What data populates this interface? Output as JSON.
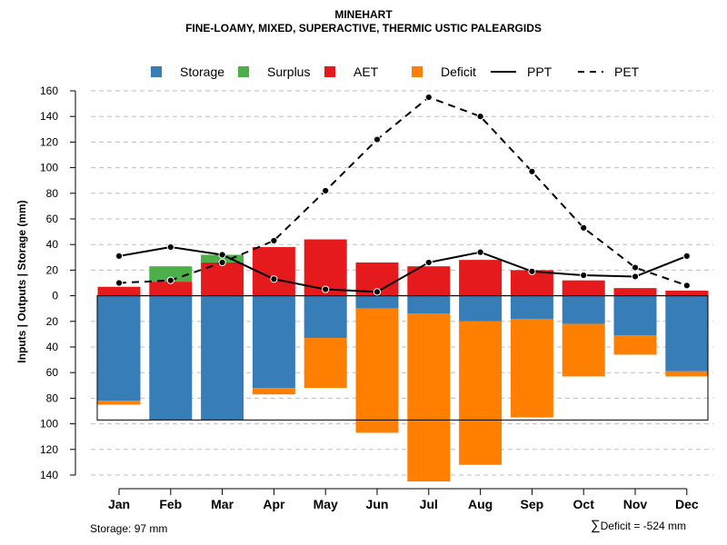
{
  "chart_data": {
    "type": "bar",
    "title": "MINEHART",
    "subtitle": "FINE-LOAMY, MIXED, SUPERACTIVE, THERMIC USTIC PALEARGIDS",
    "ylabel": "Inputs | Outputs | Storage    (mm)",
    "ylim": [
      -140,
      160
    ],
    "yticks": [
      160,
      140,
      120,
      100,
      80,
      60,
      40,
      20,
      0,
      -20,
      -40,
      -60,
      -80,
      -100,
      -120,
      -140
    ],
    "ytick_labels": [
      "160",
      "140",
      "120",
      "100",
      "80",
      "60",
      "40",
      "20",
      "0",
      "20",
      "40",
      "60",
      "80",
      "100",
      "120",
      "140"
    ],
    "categories": [
      "Jan",
      "Feb",
      "Mar",
      "Apr",
      "May",
      "Jun",
      "Jul",
      "Aug",
      "Sep",
      "Oct",
      "Nov",
      "Dec"
    ],
    "legend": [
      "Storage",
      "Surplus",
      "AET",
      "Deficit",
      "PPT",
      "PET"
    ],
    "storage_capacity": 97,
    "series": [
      {
        "name": "Storage",
        "color": "#377EB8",
        "values": [
          -82,
          -97,
          -97,
          -72,
          -33,
          -10,
          -14,
          -20,
          -18,
          -22,
          -31,
          -59
        ]
      },
      {
        "name": "Surplus",
        "color": "#4DAF4A",
        "values": [
          0,
          12,
          6,
          0,
          0,
          0,
          0,
          0,
          0,
          0,
          0,
          0
        ]
      },
      {
        "name": "AET",
        "color": "#E41A1C",
        "values": [
          7,
          11,
          26,
          38,
          44,
          26,
          23,
          28,
          20,
          12,
          6,
          4
        ]
      },
      {
        "name": "Deficit",
        "color": "#FF7F00",
        "values": [
          -3,
          0,
          0,
          -5,
          -39,
          -97,
          -131,
          -112,
          -77,
          -41,
          -15,
          -4
        ]
      },
      {
        "name": "PPT",
        "color": "#000000",
        "style": "solid",
        "values": [
          31,
          38,
          32,
          13,
          5,
          3,
          26,
          34,
          19,
          16,
          15,
          31
        ]
      },
      {
        "name": "PET",
        "color": "#000000",
        "style": "dashed",
        "values": [
          10,
          12,
          26,
          43,
          82,
          122,
          155,
          140,
          97,
          53,
          22,
          8
        ]
      }
    ]
  },
  "footer": {
    "storage_text": "Storage: 97 mm",
    "deficit_symbol": "∑",
    "deficit_text": "Deficit = -524 mm"
  }
}
